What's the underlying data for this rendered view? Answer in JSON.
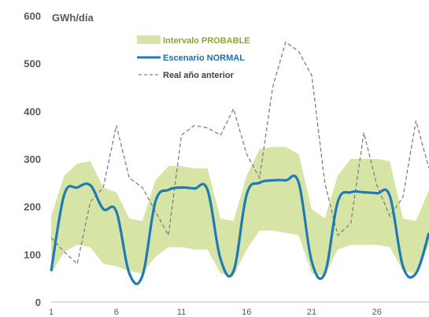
{
  "colors": {
    "band": "#d6e4a6",
    "band_label": "#8aa63a",
    "normal": "#1f7bb3",
    "normal_label": "#1f6ea8",
    "previous": "#808080",
    "previous_label": "#404040",
    "tick": "#595959"
  },
  "chart_data": {
    "type": "line",
    "unit_label": "GWh/día",
    "x": [
      1,
      2,
      3,
      4,
      5,
      6,
      7,
      8,
      9,
      10,
      11,
      12,
      13,
      14,
      15,
      16,
      17,
      18,
      19,
      20,
      21,
      22,
      23,
      24,
      25,
      26,
      27,
      28,
      29,
      30
    ],
    "xticks": [
      1,
      6,
      11,
      16,
      21,
      26
    ],
    "ylim": [
      0,
      600
    ],
    "yticks": [
      0,
      100,
      200,
      300,
      400,
      500,
      600
    ],
    "legend_position": "top-left",
    "series": [
      {
        "name": "Intervalo PROBABLE",
        "kind": "band",
        "lower": [
          60,
          105,
          120,
          115,
          80,
          75,
          65,
          60,
          95,
          115,
          115,
          110,
          110,
          60,
          55,
          110,
          150,
          150,
          145,
          140,
          60,
          55,
          110,
          120,
          120,
          120,
          115,
          65,
          60,
          120
        ],
        "upper": [
          180,
          265,
          290,
          295,
          240,
          230,
          175,
          170,
          255,
          285,
          285,
          280,
          280,
          175,
          170,
          265,
          320,
          325,
          325,
          310,
          195,
          175,
          265,
          300,
          300,
          300,
          295,
          175,
          170,
          235
        ]
      },
      {
        "name": "Escenario NORMAL",
        "kind": "line",
        "values": [
          65,
          225,
          240,
          245,
          195,
          190,
          60,
          55,
          210,
          235,
          240,
          238,
          235,
          90,
          65,
          225,
          250,
          255,
          255,
          250,
          85,
          60,
          210,
          230,
          230,
          228,
          222,
          75,
          60,
          145
        ]
      },
      {
        "name": "Real año anterior",
        "kind": "dashed",
        "values": [
          135,
          105,
          80,
          210,
          240,
          370,
          260,
          240,
          190,
          140,
          350,
          370,
          365,
          350,
          405,
          310,
          260,
          450,
          545,
          525,
          475,
          250,
          140,
          165,
          355,
          245,
          180,
          220,
          380,
          280
        ]
      }
    ]
  }
}
